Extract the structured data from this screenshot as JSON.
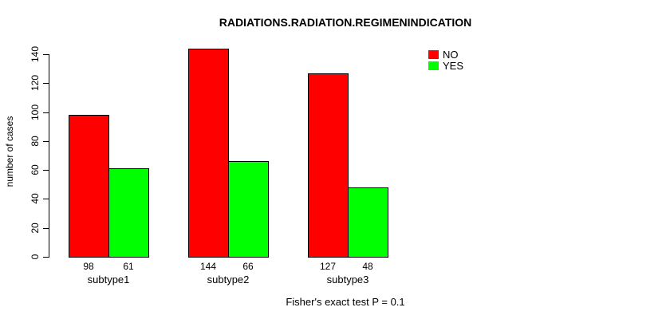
{
  "chart_data": {
    "type": "bar",
    "title": "RADIATIONS.RADIATION.REGIMENINDICATION",
    "ylabel": "number of cases",
    "xlabel": "",
    "footer": "Fisher's exact test P = 0.1",
    "categories": [
      "subtype1",
      "subtype2",
      "subtype3"
    ],
    "series": [
      {
        "name": "NO",
        "color": "#ff0000",
        "values": [
          98,
          144,
          127
        ]
      },
      {
        "name": "YES",
        "color": "#00ff00",
        "values": [
          61,
          66,
          48
        ]
      }
    ],
    "bar_value_labels": [
      [
        98,
        61
      ],
      [
        144,
        66
      ],
      [
        127,
        48
      ]
    ],
    "ylim": [
      0,
      140
    ],
    "yticks": [
      0,
      20,
      40,
      60,
      80,
      100,
      120,
      140
    ],
    "grid": false,
    "legend_position": "top-right"
  },
  "colors": {
    "background": "#ffffff",
    "bar_border": "#000000",
    "axis": "#000000",
    "text": "#000000"
  }
}
